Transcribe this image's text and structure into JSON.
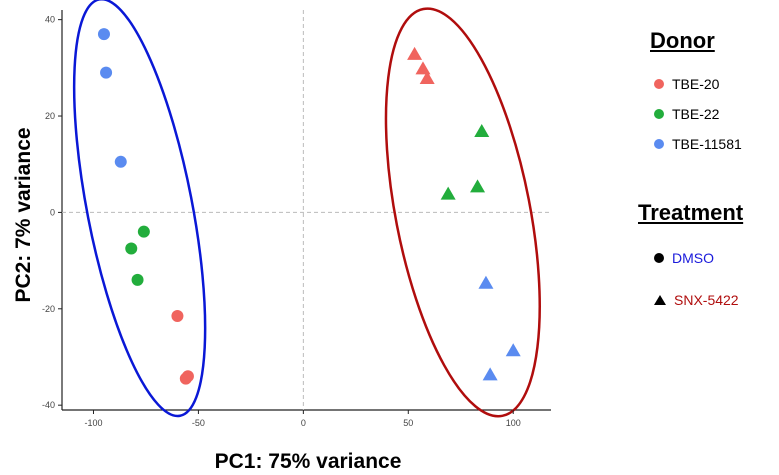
{
  "chart_data": {
    "type": "scatter",
    "xlabel": "PC1: 75% variance",
    "ylabel": "PC2: 7% variance",
    "xlim": [
      -115,
      118
    ],
    "ylim": [
      -41,
      42
    ],
    "xticks": [
      -100,
      -50,
      0,
      50,
      100
    ],
    "yticks": [
      -40,
      -20,
      0,
      20,
      40
    ],
    "xtick_labels": [
      "-100",
      "-50",
      "0",
      "50",
      "100"
    ],
    "ytick_labels": [
      "-40",
      "-20",
      "0",
      "20",
      "40"
    ],
    "grid": false,
    "reference_lines": {
      "x": 0,
      "y": 0
    },
    "colors": {
      "TBE-20": "#f0645e",
      "TBE-22": "#22ad3c",
      "TBE-11581": "#5a8bf0"
    },
    "series": [
      {
        "name": "DMSO",
        "shape": "circle",
        "points": [
          {
            "x": -95,
            "y": 37,
            "donor": "TBE-11581"
          },
          {
            "x": -94,
            "y": 29,
            "donor": "TBE-11581"
          },
          {
            "x": -87,
            "y": 10.5,
            "donor": "TBE-11581"
          },
          {
            "x": -76,
            "y": -4,
            "donor": "TBE-22"
          },
          {
            "x": -82,
            "y": -7.5,
            "donor": "TBE-22"
          },
          {
            "x": -79,
            "y": -14,
            "donor": "TBE-22"
          },
          {
            "x": -60,
            "y": -21.5,
            "donor": "TBE-20"
          },
          {
            "x": -56,
            "y": -34.5,
            "donor": "TBE-20"
          },
          {
            "x": -55,
            "y": -34,
            "donor": "TBE-20"
          }
        ]
      },
      {
        "name": "SNX-5422",
        "shape": "triangle",
        "points": [
          {
            "x": 53,
            "y": 33,
            "donor": "TBE-20"
          },
          {
            "x": 57,
            "y": 30,
            "donor": "TBE-20"
          },
          {
            "x": 59,
            "y": 28,
            "donor": "TBE-20"
          },
          {
            "x": 85,
            "y": 17,
            "donor": "TBE-22"
          },
          {
            "x": 83,
            "y": 5.5,
            "donor": "TBE-22"
          },
          {
            "x": 69,
            "y": 4,
            "donor": "TBE-22"
          },
          {
            "x": 87,
            "y": -14.5,
            "donor": "TBE-11581"
          },
          {
            "x": 100,
            "y": -28.5,
            "donor": "TBE-11581"
          },
          {
            "x": 89,
            "y": -33.5,
            "donor": "TBE-11581"
          }
        ]
      }
    ],
    "ellipses": [
      {
        "group": "DMSO",
        "color": "#0a18d6",
        "center": [
          -78,
          1
        ],
        "rx": 25,
        "ry": 44,
        "rotation_deg": -11
      },
      {
        "group": "SNX-5422",
        "color": "#b00d0d",
        "center": [
          76,
          0
        ],
        "rx": 32,
        "ry": 43,
        "rotation_deg": -11
      }
    ],
    "legend": {
      "position": "right",
      "donor_title": "Donor",
      "donor_entries": [
        "TBE-20",
        "TBE-22",
        "TBE-11581"
      ],
      "treatment_title": "Treatment",
      "treatment_entries": [
        {
          "label": "DMSO",
          "color": "#1a1adb"
        },
        {
          "label": "SNX-5422",
          "color": "#b00d0d"
        }
      ]
    }
  }
}
